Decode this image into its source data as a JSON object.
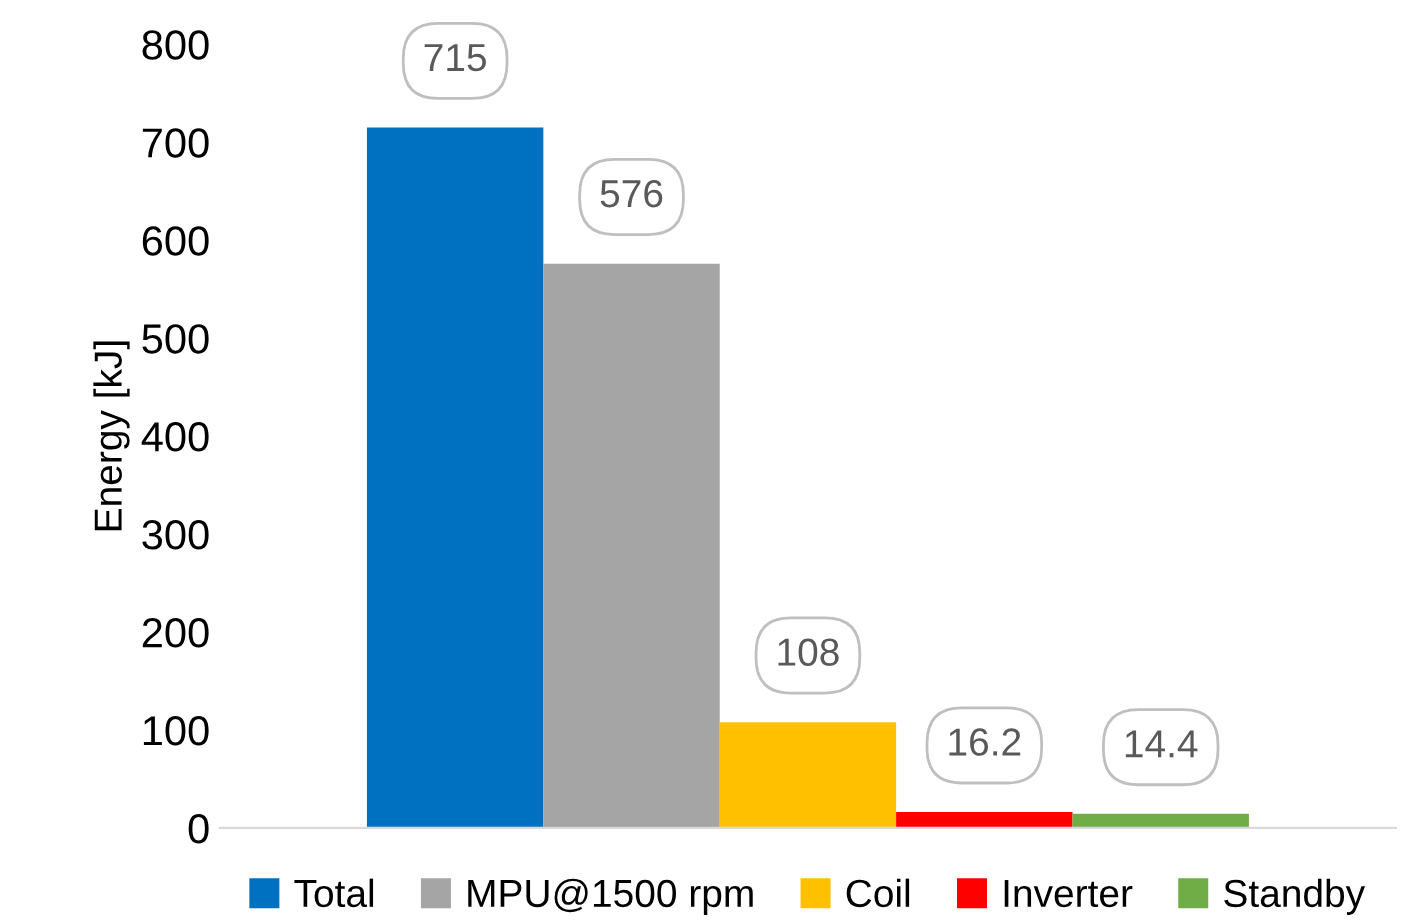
{
  "chart_data": {
    "type": "bar",
    "ylabel": "Energy [kJ]",
    "categories": [
      null
    ],
    "ylim": [
      0,
      800
    ],
    "yticks": [
      0,
      100,
      200,
      300,
      400,
      500,
      600,
      700,
      800
    ],
    "grid": false,
    "legend": "bottom",
    "data_labels": true,
    "series": [
      {
        "name": "Total",
        "color": "#0070c0",
        "values": [
          715
        ]
      },
      {
        "name": "MPU@1500 rpm",
        "color": "#a5a5a5",
        "values": [
          576
        ]
      },
      {
        "name": "Coil",
        "color": "#ffc000",
        "values": [
          108
        ]
      },
      {
        "name": "Inverter",
        "color": "#ff0000",
        "values": [
          16.2
        ]
      },
      {
        "name": "Standby",
        "color": "#70ad47",
        "values": [
          14.4
        ]
      }
    ]
  }
}
